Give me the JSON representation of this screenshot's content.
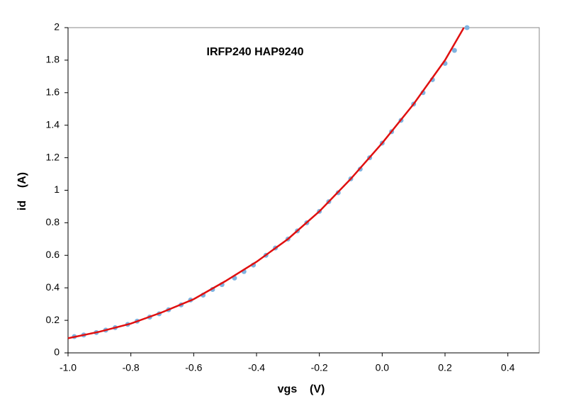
{
  "chart_data": {
    "type": "scatter",
    "title": "IRFP240 HAP9240",
    "xlabel": "vgs    (V)",
    "ylabel": "id    (A)",
    "xlim": [
      -1.0,
      0.5
    ],
    "xticks": [
      {
        "value": -1.0,
        "label": "-1.0"
      },
      -0.8,
      -0.6,
      -0.4,
      -0.2,
      {
        "value": 0,
        "label": "0.0"
      },
      0.2,
      0.4
    ],
    "ylim": [
      0,
      2
    ],
    "yticks": [
      0,
      0.2,
      0.4,
      0.6,
      0.8,
      1,
      1.2,
      1.4,
      1.6,
      1.8,
      2
    ],
    "series": [
      {
        "type": "scatter",
        "color": "#7fb3e0",
        "x": [
          -0.98,
          -0.95,
          -0.91,
          -0.88,
          -0.85,
          -0.81,
          -0.78,
          -0.74,
          -0.71,
          -0.68,
          -0.64,
          -0.61,
          -0.57,
          -0.54,
          -0.51,
          -0.47,
          -0.44,
          -0.41,
          -0.37,
          -0.34,
          -0.3,
          -0.27,
          -0.24,
          -0.2,
          -0.17,
          -0.14,
          -0.1,
          -0.07,
          -0.04,
          0.0,
          0.03,
          0.06,
          0.1,
          0.13,
          0.16,
          0.2,
          0.23,
          0.27
        ],
        "values": [
          0.1,
          0.11,
          0.125,
          0.14,
          0.155,
          0.175,
          0.195,
          0.22,
          0.24,
          0.265,
          0.295,
          0.325,
          0.355,
          0.39,
          0.42,
          0.46,
          0.5,
          0.54,
          0.6,
          0.645,
          0.7,
          0.75,
          0.8,
          0.87,
          0.93,
          0.985,
          1.07,
          1.13,
          1.2,
          1.29,
          1.36,
          1.43,
          1.53,
          1.6,
          1.68,
          1.78,
          1.86,
          2.0
        ]
      },
      {
        "type": "line",
        "color": "#e01010",
        "x": [
          -1.0,
          -0.9,
          -0.8,
          -0.7,
          -0.6,
          -0.5,
          -0.4,
          -0.3,
          -0.2,
          -0.1,
          0.0,
          0.1,
          0.2,
          0.26
        ],
        "values": [
          0.09,
          0.13,
          0.18,
          0.25,
          0.33,
          0.44,
          0.56,
          0.7,
          0.87,
          1.07,
          1.29,
          1.53,
          1.8,
          2.0
        ]
      }
    ]
  }
}
